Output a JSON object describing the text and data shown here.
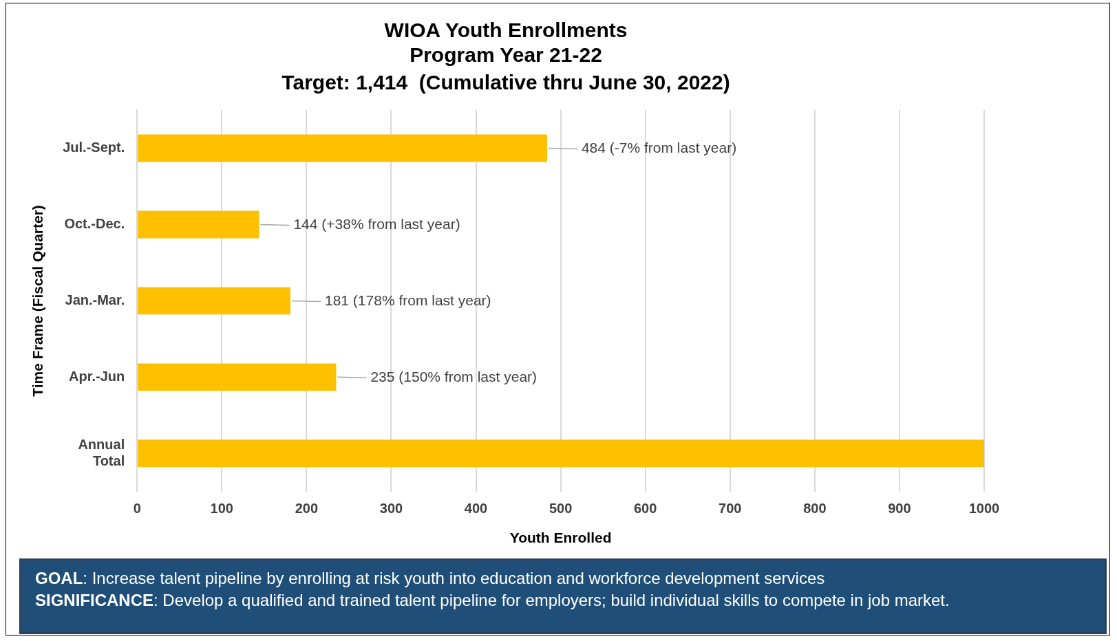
{
  "chart_data": {
    "type": "bar",
    "orientation": "horizontal",
    "title": "WIOA Youth Enrollments\nProgram Year 21-22",
    "subtitle": "Target: 1,414  (Cumulative thru June 30, 2022)",
    "xlabel": "Youth Enrolled",
    "ylabel": "Time Frame (Fiscal Quarter)",
    "categories": [
      "Jul.-Sept.",
      "Oct.-Dec.",
      "Jan.-Mar.",
      "Apr.-Jun",
      "Annual Total"
    ],
    "values": [
      484,
      144,
      181,
      235,
      1000
    ],
    "value_labels": [
      "484 (-7% from last year)",
      "144 (+38% from last year)",
      "181 (178% from last year)",
      "235 (150% from last year)",
      null
    ],
    "color": "#ffc000",
    "xlim": [
      0,
      1000
    ],
    "xticks": [
      0,
      100,
      200,
      300,
      400,
      500,
      600,
      700,
      800,
      900,
      1000
    ],
    "grid": "x",
    "legend": false,
    "annotations": [
      "GOAL: Increase talent pipeline by enrolling at risk youth into education and workforce development  services",
      "SIGNIFICANCE: Develop a qualified and trained talent pipeline for employers; build individual skills to compete in job market."
    ]
  }
}
